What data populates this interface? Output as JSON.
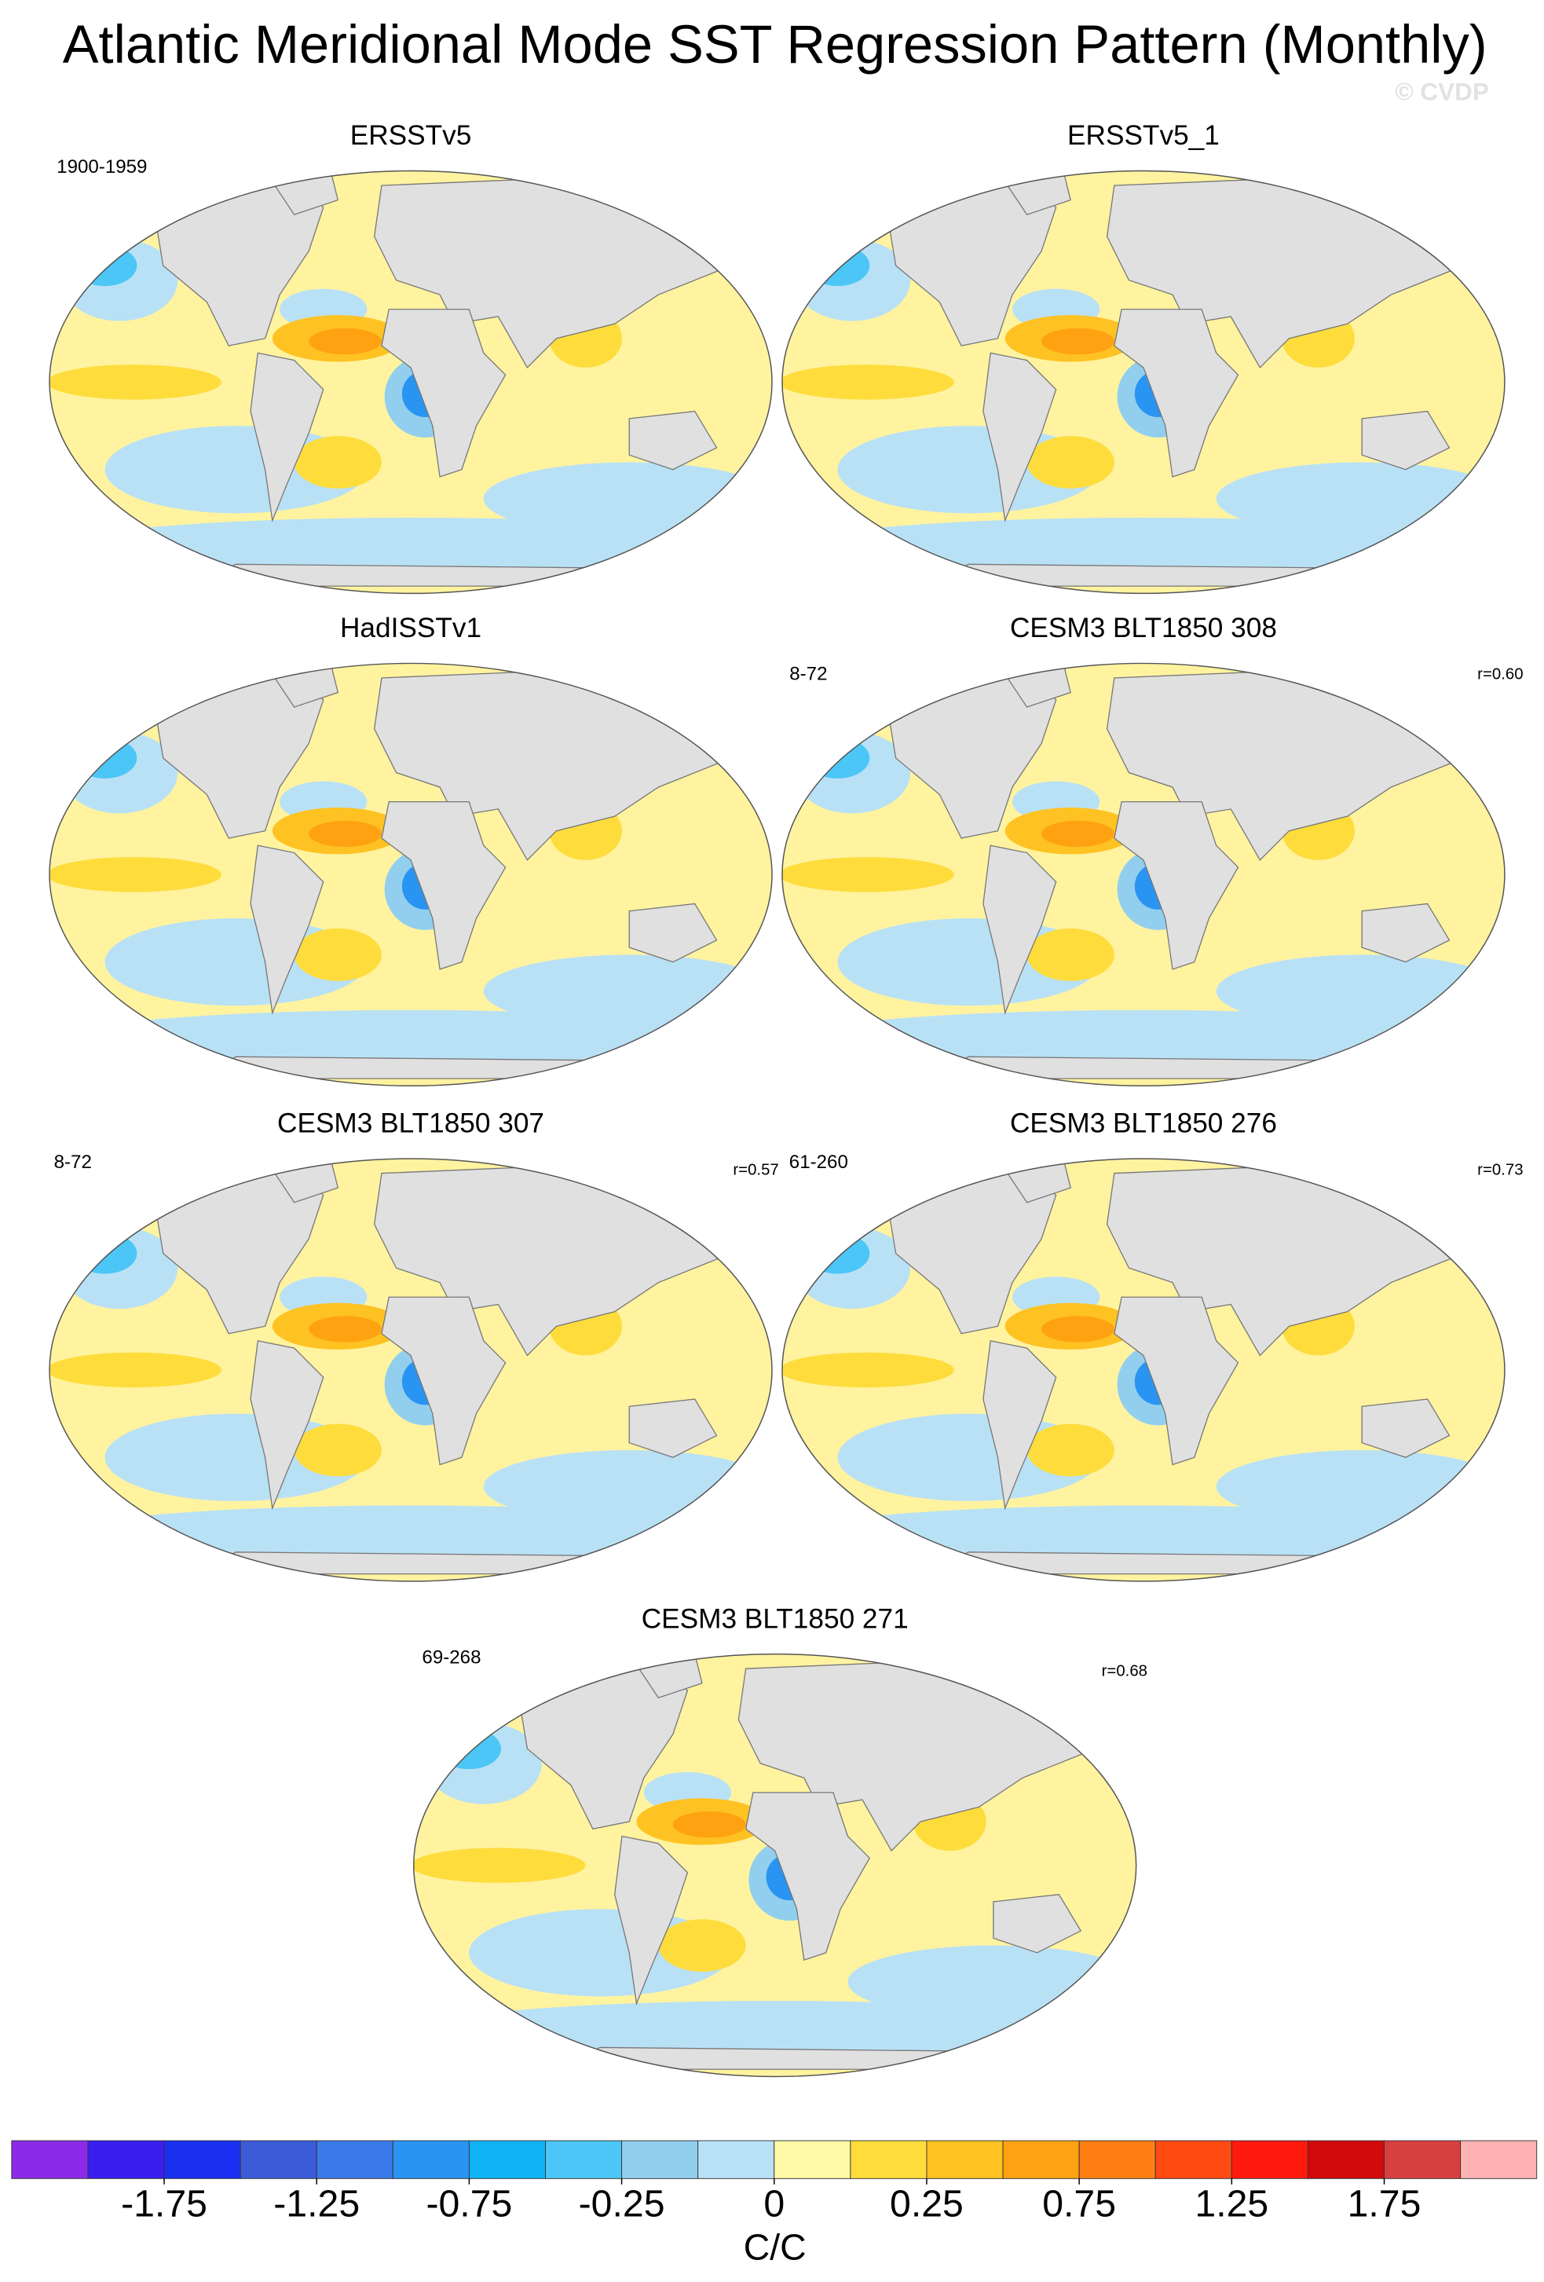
{
  "title": "Atlantic Meridional Mode SST Regression Pattern (Monthly)",
  "watermark": "© CVDP",
  "panels": [
    {
      "title": "ERSSTv5",
      "period": "1900-1959"
    },
    {
      "title": "ERSSTv5_1"
    },
    {
      "title": "HadISSTv1"
    },
    {
      "title": "CESM3 BLT1850 308",
      "period": "8-72",
      "r": "r=0.60"
    },
    {
      "title": "CESM3 BLT1850 307",
      "period": "8-72",
      "r": "r=0.57"
    },
    {
      "title": "CESM3 BLT1850 276",
      "period": "61-260",
      "r": "r=0.73"
    },
    {
      "title": "CESM3 BLT1850 271",
      "period": "69-268",
      "r": "r=0.68"
    }
  ],
  "colorbar": {
    "label": "C/C",
    "colors": [
      "#8b2be8",
      "#3a1ef0",
      "#1a30f0",
      "#3b5bd8",
      "#3a7ae8",
      "#2a94f2",
      "#10b2f6",
      "#4cc6f6",
      "#92cfee",
      "#b9e1f6",
      "#fffaa8",
      "#fedc3c",
      "#fec222",
      "#fea212",
      "#ff7f12",
      "#ff4a12",
      "#ff1a10",
      "#d20a0a",
      "#d84040",
      "#ffb2b2"
    ],
    "ticks": [
      -1.75,
      -1.25,
      -0.75,
      -0.25,
      0,
      0.25,
      0.75,
      1.25,
      1.75
    ]
  }
}
